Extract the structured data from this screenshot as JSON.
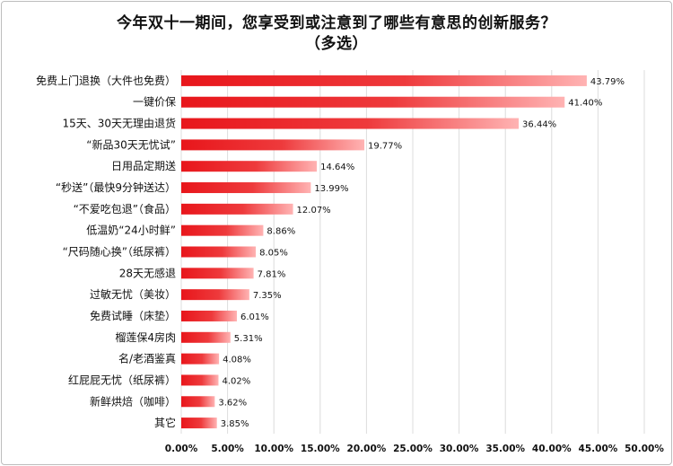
{
  "chart_data": {
    "type": "bar",
    "orientation": "horizontal",
    "title": "今年双十一期间，您享受到或注意到了哪些有意思的创新服务？",
    "subtitle": "（多选）",
    "categories": [
      "免费上门退换（大件也免费）",
      "一键价保",
      "15天、30天无理由退货",
      "“新品30天无忧试”",
      "日用品定期送",
      "“秒送”（最快9分钟送达）",
      "“不爱吃包退”（食品）",
      "低温奶“24小时鲜”",
      "“尺码随心换”（纸尿裤）",
      "28天无感退",
      "过敏无忧（美妆）",
      "免费试睡（床垫）",
      "榴莲保4房肉",
      "名/老酒鉴真",
      "红屁屁无忧（纸尿裤）",
      "新鲜烘焙（咖啡）",
      "其它"
    ],
    "values": [
      43.79,
      41.4,
      36.44,
      19.77,
      14.64,
      13.99,
      12.07,
      8.86,
      8.05,
      7.81,
      7.35,
      6.01,
      5.31,
      4.08,
      4.02,
      3.62,
      3.85
    ],
    "value_labels": [
      "43.79%",
      "41.40%",
      "36.44%",
      "19.77%",
      "14.64%",
      "13.99%",
      "12.07%",
      "8.86%",
      "8.05%",
      "7.81%",
      "7.35%",
      "6.01%",
      "5.31%",
      "4.08%",
      "4.02%",
      "3.62%",
      "3.85%"
    ],
    "xlim": [
      0,
      50
    ],
    "xticks": [
      "0.00%",
      "5.00%",
      "10.00%",
      "15.00%",
      "20.00%",
      "25.00%",
      "30.00%",
      "35.00%",
      "40.00%",
      "45.00%",
      "50.00%"
    ],
    "grid": true,
    "colors": {
      "bar_start": "#e8161b",
      "bar_end": "#ffb3b3",
      "grid": "#dcdcdc"
    }
  }
}
